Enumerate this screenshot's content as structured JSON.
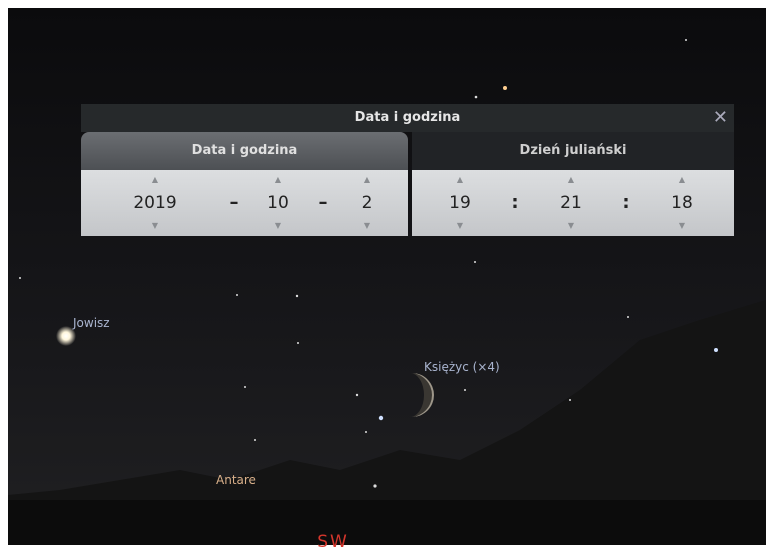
{
  "dialog": {
    "title": "Data i godzina",
    "close": "✕",
    "tabs": [
      "Data i godzina",
      "Dzień juliański"
    ],
    "date": {
      "year": "2019",
      "month": "10",
      "day": "2",
      "separator": "–"
    },
    "time": {
      "hour": "19",
      "minute": "21",
      "second": "18",
      "separator": ":"
    }
  },
  "sky": {
    "labels": [
      "Jowisz",
      "Księżyc (×4)",
      "Antare"
    ],
    "compass": "SW"
  }
}
